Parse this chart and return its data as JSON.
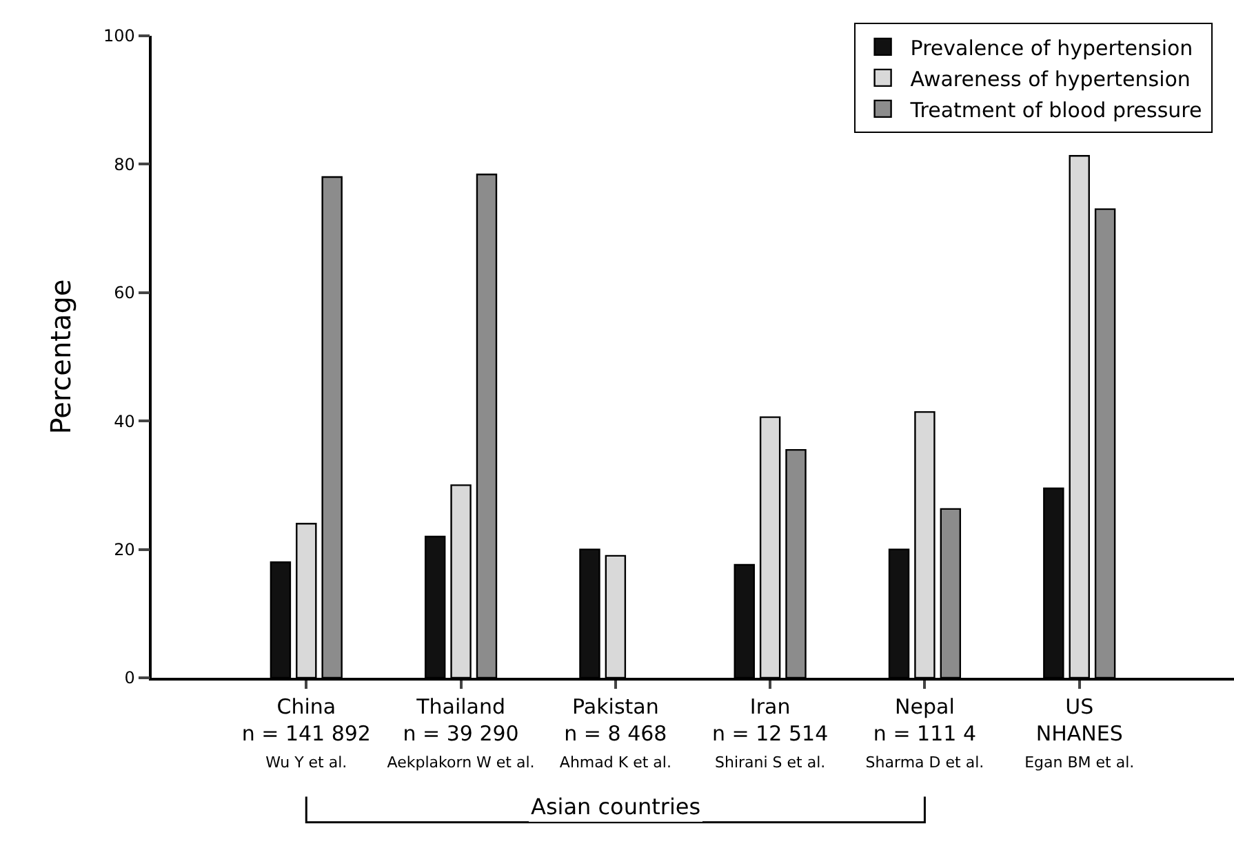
{
  "chart_data": {
    "type": "bar",
    "ylabel": "Percentage",
    "categories": [
      "China\nn = 141 892\nWu Y et al.",
      "Thailand\nn = 39 290\nAekplakorn W et al.",
      "Pakistan\nn = 8 468\nAhmad K et al.",
      "Iran\nn = 12 514\nShirani S et al.",
      "Nepal\nn = 111 4\nSharma D et al.",
      "US\nNHANES\nEgan BM et al."
    ],
    "series": [
      {
        "name": "Prevalence of hypertension",
        "color": "#111111",
        "values": [
          18,
          22,
          20,
          17.6,
          20,
          29.5
        ]
      },
      {
        "name": "Awareness of hypertension",
        "color": "#d9d9d9",
        "values": [
          24,
          30,
          19,
          40.6,
          41.4,
          81.3
        ]
      },
      {
        "name": "Treatment of blood pressure",
        "color": "#8c8c8c",
        "values": [
          78,
          78.4,
          null,
          35.5,
          26.3,
          73
        ]
      }
    ],
    "ylim": [
      0,
      100
    ],
    "yticks": [
      0,
      20,
      40,
      60,
      80,
      100
    ],
    "grid": false,
    "legend": "top right",
    "annotations": [
      "Asian countries"
    ]
  }
}
